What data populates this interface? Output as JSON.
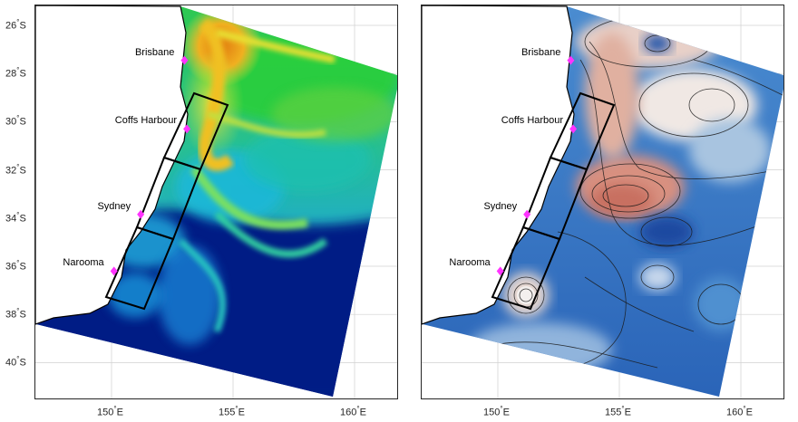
{
  "maps": [
    {
      "id": "left",
      "colormap": "chlorophyll",
      "lat_ticks": [
        {
          "value": -26,
          "label": "26",
          "suffix": "S"
        },
        {
          "value": -28,
          "label": "28",
          "suffix": "S"
        },
        {
          "value": -30,
          "label": "30",
          "suffix": "S"
        },
        {
          "value": -32,
          "label": "32",
          "suffix": "S"
        },
        {
          "value": -34,
          "label": "34",
          "suffix": "S"
        },
        {
          "value": -36,
          "label": "36",
          "suffix": "S"
        },
        {
          "value": -38,
          "label": "38",
          "suffix": "S"
        },
        {
          "value": -40,
          "label": "40",
          "suffix": "S"
        }
      ],
      "lon_ticks": [
        {
          "value": 150,
          "label": "150",
          "suffix": "E"
        },
        {
          "value": 155,
          "label": "155",
          "suffix": "E"
        },
        {
          "value": 160,
          "label": "160",
          "suffix": "E"
        }
      ]
    },
    {
      "id": "right",
      "colormap": "diverging-blue-red",
      "lat_ticks": [],
      "lon_ticks": [
        {
          "value": 150,
          "label": "150",
          "suffix": "E"
        },
        {
          "value": 155,
          "label": "155",
          "suffix": "E"
        },
        {
          "value": 160,
          "label": "160",
          "suffix": "E"
        }
      ]
    }
  ],
  "cities": [
    {
      "name": "Brisbane",
      "lon": 153.0,
      "lat": -27.45
    },
    {
      "name": "Coffs Harbour",
      "lon": 153.1,
      "lat": -30.3
    },
    {
      "name": "Sydney",
      "lon": 151.2,
      "lat": -33.85
    },
    {
      "name": "Narooma",
      "lon": 150.1,
      "lat": -36.2
    }
  ],
  "marker_color": "#ff33ff",
  "grid": true,
  "colors": {
    "land": "#ffffff",
    "coast": "#000000",
    "box": "#000000",
    "grid": "#d0d0d0"
  }
}
